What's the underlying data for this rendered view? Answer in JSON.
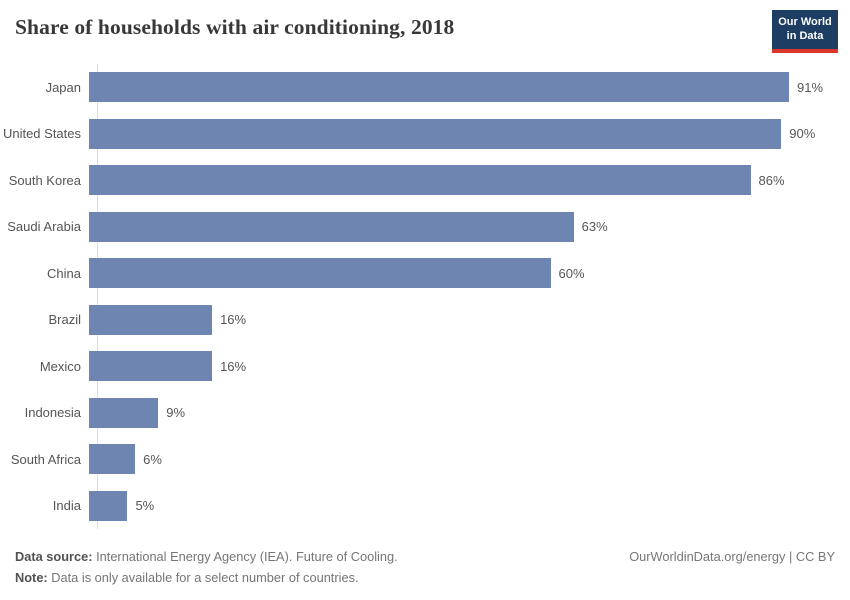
{
  "header": {
    "title": "Share of households with air conditioning, 2018"
  },
  "logo": {
    "line1": "Our World",
    "line2": "in Data",
    "bg_color": "#1d3d63",
    "accent_color": "#dc352b"
  },
  "chart_data": {
    "type": "bar",
    "orientation": "horizontal",
    "title": "Share of households with air conditioning, 2018",
    "categories": [
      "Japan",
      "United States",
      "South Korea",
      "Saudi Arabia",
      "China",
      "Brazil",
      "Mexico",
      "Indonesia",
      "South Africa",
      "India"
    ],
    "values": [
      91,
      90,
      86,
      63,
      60,
      16,
      16,
      9,
      6,
      5
    ],
    "labels": [
      "91%",
      "90%",
      "86%",
      "63%",
      "60%",
      "16%",
      "16%",
      "9%",
      "6%",
      "5%"
    ],
    "value_suffix": "%",
    "xlabel": "",
    "ylabel": "",
    "xlim": [
      0,
      100
    ],
    "grid": false,
    "legend": false,
    "bar_color": "#6d85b0",
    "axis_line_color": "#dddddd"
  },
  "footer": {
    "source_label": "Data source:",
    "source_text": " International Energy Agency (IEA). Future of Cooling.",
    "note_label": "Note:",
    "note_text": " Data is only available for a select number of countries.",
    "link": "OurWorldinData.org/energy | CC BY"
  }
}
